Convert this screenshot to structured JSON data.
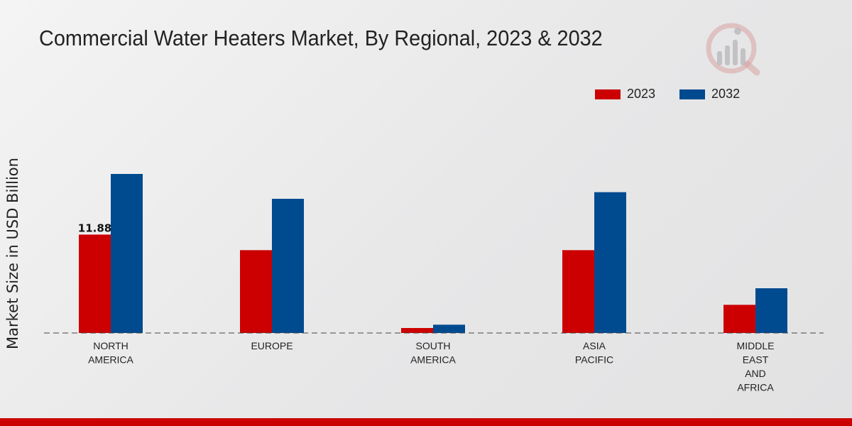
{
  "page": {
    "title": "Commercial Water Heaters Market, By Regional, 2023 & 2032"
  },
  "chart_data": {
    "type": "bar",
    "title": "Commercial Water Heaters Market, By Regional, 2023 & 2032",
    "xlabel": "",
    "ylabel": "Market Size in USD Billion",
    "categories": [
      [
        "NORTH",
        "AMERICA"
      ],
      [
        "EUROPE"
      ],
      [
        "SOUTH",
        "AMERICA"
      ],
      [
        "ASIA",
        "PACIFIC"
      ],
      [
        "MIDDLE",
        "EAST",
        "AND",
        "AFRICA"
      ]
    ],
    "series": [
      {
        "name": "2023",
        "color": "#cc0000",
        "values": [
          11.88,
          10.0,
          0.6,
          10.0,
          3.4
        ]
      },
      {
        "name": "2032",
        "color": "#004a8f",
        "values": [
          19.2,
          16.2,
          1.0,
          17.0,
          5.4
        ]
      }
    ],
    "data_labels": [
      {
        "series": 0,
        "index": 0,
        "text": "11.88"
      }
    ],
    "ylim": [
      0,
      30
    ],
    "grid": false,
    "legend_position": "top-right"
  }
}
